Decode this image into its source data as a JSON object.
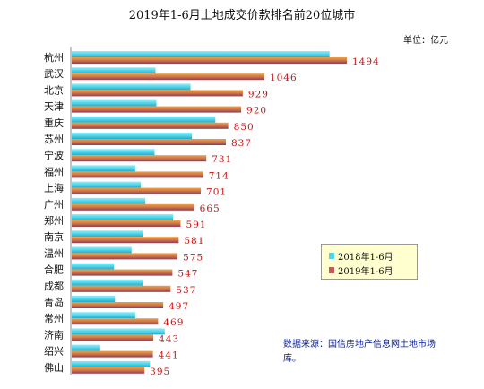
{
  "chart_data": {
    "type": "bar",
    "orientation": "horizontal",
    "title": "2019年1-6月土地成交价款排名前20位城市",
    "unit": "单位：亿元",
    "categories": [
      "杭州",
      "武汉",
      "北京",
      "天津",
      "重庆",
      "苏州",
      "宁波",
      "福州",
      "上海",
      "广州",
      "郑州",
      "南京",
      "温州",
      "合肥",
      "成都",
      "青岛",
      "常州",
      "济南",
      "绍兴",
      "佛山"
    ],
    "series": [
      {
        "name": "2018年1-6月",
        "color": "#4fd4ea",
        "values": [
          1400,
          455,
          645,
          460,
          780,
          653,
          450,
          345,
          375,
          400,
          550,
          385,
          325,
          230,
          385,
          235,
          345,
          505,
          155,
          425
        ]
      },
      {
        "name": "2019年1-6月",
        "color": "#c25a5a",
        "values": [
          1494,
          1046,
          929,
          920,
          850,
          837,
          731,
          714,
          701,
          665,
          591,
          581,
          575,
          547,
          537,
          497,
          469,
          443,
          441,
          395
        ]
      }
    ],
    "data_labels": [
      "1494",
      "1046",
      "929",
      "920",
      "850",
      "837",
      "731",
      "714",
      "701",
      "665",
      "591",
      "581",
      "575",
      "547",
      "537",
      "497",
      "469",
      "443",
      "441",
      "395"
    ],
    "grid": false,
    "legend_position": "right"
  },
  "legend": {
    "item1": "2018年1-6月",
    "item2": "2019年1-6月"
  },
  "source_note": "数据来源：国信房地产信息网土地市场库。"
}
